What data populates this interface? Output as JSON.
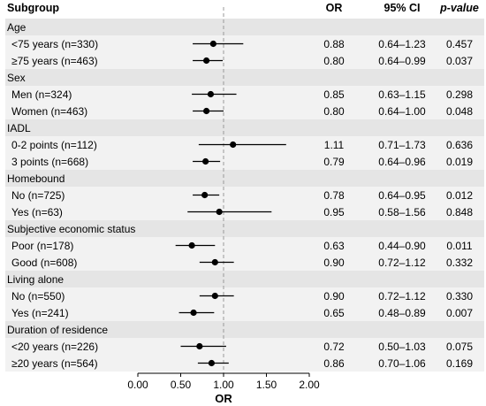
{
  "header": {
    "subgroup": "Subgroup",
    "or": "OR",
    "ci": "95% CI",
    "p": "p-value"
  },
  "chart_data": {
    "type": "forest",
    "xlabel": "OR",
    "xlim": [
      0,
      2
    ],
    "xticks": [
      "0.00",
      "0.50",
      "1.00",
      "1.50",
      "2.00"
    ],
    "reference_line": 1,
    "groups": [
      {
        "name": "Age",
        "rows": [
          {
            "label": "<75 years (n=330)",
            "or": 0.88,
            "lo": 0.64,
            "hi": 1.23,
            "or_text": "0.88",
            "ci_text": "0.64–1.23",
            "p_text": "0.457"
          },
          {
            "label": "≥75 years (n=463)",
            "or": 0.8,
            "lo": 0.64,
            "hi": 0.99,
            "or_text": "0.80",
            "ci_text": "0.64–0.99",
            "p_text": "0.037"
          }
        ]
      },
      {
        "name": "Sex",
        "rows": [
          {
            "label": "Men (n=324)",
            "or": 0.85,
            "lo": 0.63,
            "hi": 1.15,
            "or_text": "0.85",
            "ci_text": "0.63–1.15",
            "p_text": "0.298"
          },
          {
            "label": "Women (n=463)",
            "or": 0.8,
            "lo": 0.64,
            "hi": 1.0,
            "or_text": "0.80",
            "ci_text": "0.64–1.00",
            "p_text": "0.048"
          }
        ]
      },
      {
        "name": "IADL",
        "rows": [
          {
            "label": "0-2 points (n=112)",
            "or": 1.11,
            "lo": 0.71,
            "hi": 1.73,
            "or_text": "1.11",
            "ci_text": "0.71–1.73",
            "p_text": "0.636"
          },
          {
            "label": "3 points (n=668)",
            "or": 0.79,
            "lo": 0.64,
            "hi": 0.96,
            "or_text": "0.79",
            "ci_text": "0.64–0.96",
            "p_text": "0.019"
          }
        ]
      },
      {
        "name": "Homebound",
        "rows": [
          {
            "label": "No (n=725)",
            "or": 0.78,
            "lo": 0.64,
            "hi": 0.95,
            "or_text": "0.78",
            "ci_text": "0.64–0.95",
            "p_text": "0.012"
          },
          {
            "label": "Yes (n=63)",
            "or": 0.95,
            "lo": 0.58,
            "hi": 1.56,
            "or_text": "0.95",
            "ci_text": "0.58–1.56",
            "p_text": "0.848"
          }
        ]
      },
      {
        "name": "Subjective economic status",
        "rows": [
          {
            "label": "Poor (n=178)",
            "or": 0.63,
            "lo": 0.44,
            "hi": 0.9,
            "or_text": "0.63",
            "ci_text": "0.44–0.90",
            "p_text": "0.011"
          },
          {
            "label": "Good (n=608)",
            "or": 0.9,
            "lo": 0.72,
            "hi": 1.12,
            "or_text": "0.90",
            "ci_text": "0.72–1.12",
            "p_text": "0.332"
          }
        ]
      },
      {
        "name": "Living alone",
        "rows": [
          {
            "label": "No (n=550)",
            "or": 0.9,
            "lo": 0.72,
            "hi": 1.12,
            "or_text": "0.90",
            "ci_text": "0.72–1.12",
            "p_text": "0.330"
          },
          {
            "label": "Yes (n=241)",
            "or": 0.65,
            "lo": 0.48,
            "hi": 0.89,
            "or_text": "0.65",
            "ci_text": "0.48–0.89",
            "p_text": "0.007"
          }
        ]
      },
      {
        "name": "Duration of residence",
        "rows": [
          {
            "label": "<20 years (n=226)",
            "or": 0.72,
            "lo": 0.5,
            "hi": 1.03,
            "or_text": "0.72",
            "ci_text": "0.50–1.03",
            "p_text": "0.075"
          },
          {
            "label": "≥20 years (n=564)",
            "or": 0.86,
            "lo": 0.7,
            "hi": 1.06,
            "or_text": "0.86",
            "ci_text": "0.70–1.06",
            "p_text": "0.169"
          }
        ]
      }
    ]
  },
  "colors": {
    "group_band": "#e5e5e5",
    "row_band": "#f2f2f2",
    "mark": "#000000",
    "ref_line": "#999999"
  }
}
